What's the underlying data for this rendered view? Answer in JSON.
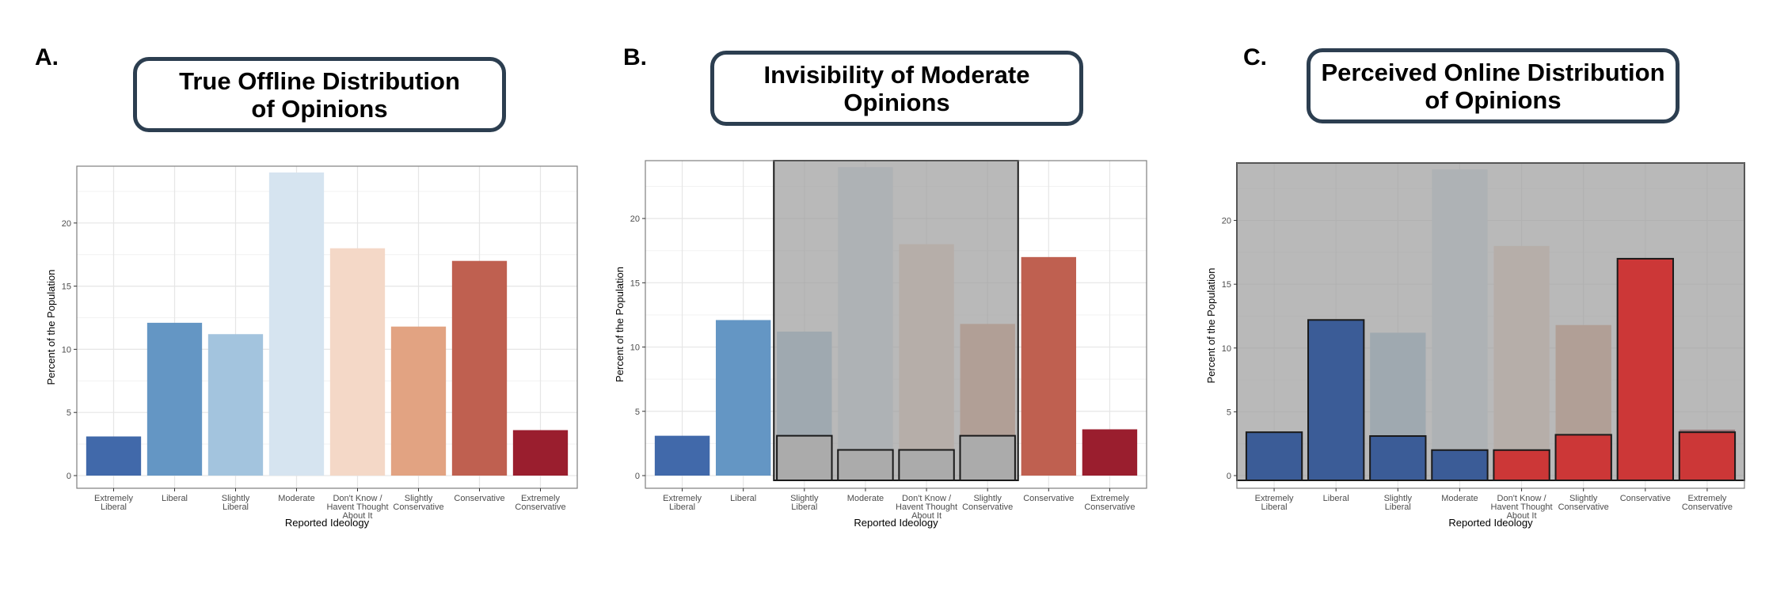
{
  "panels": [
    {
      "letter": "A.",
      "title_lines": [
        "True Offline Distribution",
        "of Opinions"
      ],
      "chart_data": {
        "type": "bar",
        "categories": [
          "Extremely Liberal",
          "Liberal",
          "Slightly Liberal",
          "Moderate",
          "Don't Know / Havent Thought About It",
          "Slightly Conservative",
          "Conservative",
          "Extremely Conservative"
        ],
        "values": [
          3.1,
          12.1,
          11.2,
          24.0,
          18.0,
          11.8,
          17.0,
          3.6
        ],
        "colors": [
          "#4169aa",
          "#6496c4",
          "#a3c4de",
          "#d6e4f0",
          "#f4d8c7",
          "#e2a382",
          "#bf6050",
          "#9a1e2e"
        ],
        "xlabel": "Reported Ideology",
        "ylabel": "Percent of the Population",
        "ylim": [
          0,
          24.5
        ],
        "yticks": [
          0,
          5,
          10,
          15,
          20
        ],
        "grid": true,
        "overlay": null
      }
    },
    {
      "letter": "B.",
      "title_lines": [
        "Invisibility of Moderate",
        "Opinions"
      ],
      "chart_data": {
        "type": "bar",
        "categories": [
          "Extremely Liberal",
          "Liberal",
          "Slightly Liberal",
          "Moderate",
          "Don't Know / Havent Thought About It",
          "Slightly Conservative",
          "Conservative",
          "Extremely Conservative"
        ],
        "values": [
          3.1,
          12.1,
          11.2,
          24.0,
          18.0,
          11.8,
          17.0,
          3.6
        ],
        "colors": [
          "#4169aa",
          "#6496c4",
          "#a3c4de",
          "#d6e4f0",
          "#f4d8c7",
          "#e2a382",
          "#bf6050",
          "#9a1e2e"
        ],
        "xlabel": "Reported Ideology",
        "ylabel": "Percent of the Population",
        "ylim": [
          0,
          24.5
        ],
        "yticks": [
          0,
          5,
          10,
          15,
          20
        ],
        "grid": true,
        "overlay": {
          "from_category": 2,
          "to_category": 5,
          "color": "#9e9e9e",
          "online_values": [
            3.1,
            2.0,
            2.0,
            3.1
          ],
          "online_color": "#ababab"
        }
      }
    },
    {
      "letter": "C.",
      "title_lines": [
        "Perceived Online Distribution",
        "of Opinions"
      ],
      "chart_data": {
        "type": "bar",
        "categories": [
          "Extremely Liberal",
          "Liberal",
          "Slightly Liberal",
          "Moderate",
          "Don't Know / Havent Thought About It",
          "Slightly Conservative",
          "Conservative",
          "Extremely Conservative"
        ],
        "values": [
          3.1,
          12.1,
          11.2,
          24.0,
          18.0,
          11.8,
          17.0,
          3.6
        ],
        "colors": [
          "#4169aa",
          "#6496c4",
          "#a3c4de",
          "#d6e4f0",
          "#f4d8c7",
          "#e2a382",
          "#bf6050",
          "#9a1e2e"
        ],
        "xlabel": "Reported Ideology",
        "ylabel": "Percent of the Population",
        "ylim": [
          0,
          24.5
        ],
        "yticks": [
          0,
          5,
          10,
          15,
          20
        ],
        "grid": true,
        "overlay": {
          "from_category": 0,
          "to_category": 7,
          "color": "#9e9e9e",
          "online_values": [
            3.4,
            12.2,
            3.1,
            2.0,
            2.0,
            3.2,
            17.0,
            3.4
          ],
          "online_colors": [
            "#3b5c97",
            "#3b5c97",
            "#3b5c97",
            "#3b5c97",
            "#cc3737",
            "#cc3737",
            "#cc3737",
            "#cc3737"
          ]
        }
      }
    }
  ]
}
